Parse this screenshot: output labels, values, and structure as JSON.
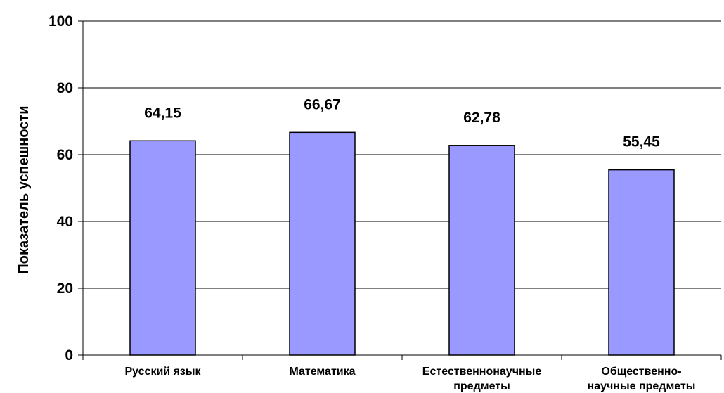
{
  "chart_data": {
    "type": "bar",
    "title": "",
    "xlabel": "",
    "ylabel": "Показатель успешности",
    "ylim": [
      0,
      100
    ],
    "yticks": [
      "0",
      "20",
      "40",
      "60",
      "80",
      "100"
    ],
    "grid": true,
    "categories": [
      [
        "Русский язык"
      ],
      [
        "Математика"
      ],
      [
        "Естественнонаучные",
        "предметы"
      ],
      [
        "Общественно-",
        "научные предметы"
      ]
    ],
    "values": [
      64.15,
      66.67,
      62.78,
      55.45
    ],
    "value_labels": [
      "64,15",
      "66,67",
      "62,78",
      "55,45"
    ],
    "bar_color": "#9999ff",
    "bar_stroke": "#000000"
  }
}
